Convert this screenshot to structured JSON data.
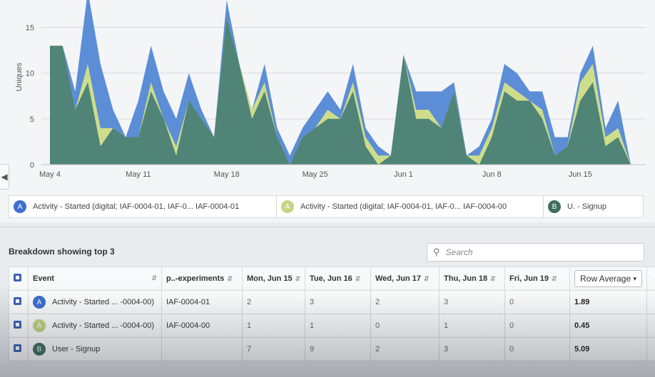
{
  "chart": {
    "colors": {
      "blue": "#5b8ed6",
      "yellow": "#cfdc8a",
      "green": "#4f8477",
      "grid": "#d7d9dd"
    },
    "chart_data": {
      "type": "area",
      "ylabel": "Uniques",
      "ylim": [
        0,
        18
      ],
      "yticks": [
        0,
        5,
        10,
        15
      ],
      "xticks": [
        {
          "label": "May 4",
          "day": 0
        },
        {
          "label": "May 11",
          "day": 7
        },
        {
          "label": "May 18",
          "day": 14
        },
        {
          "label": "May 25",
          "day": 21
        },
        {
          "label": "Jun 1",
          "day": 28
        },
        {
          "label": "Jun 8",
          "day": 35
        },
        {
          "label": "Jun 15",
          "day": 42
        }
      ],
      "x_start": "May 4",
      "series": [
        {
          "name": "U. - Signup",
          "color": "#4f8477",
          "values": [
            13,
            13,
            6,
            9,
            2,
            4,
            3,
            3,
            8,
            5,
            1,
            7,
            5,
            3,
            16,
            11,
            5,
            8,
            3,
            0,
            3,
            4,
            5,
            5,
            8,
            2,
            0,
            1,
            12,
            5,
            5,
            4,
            8,
            1,
            0,
            3,
            8,
            7,
            7,
            5,
            1,
            2,
            7,
            9,
            2,
            3,
            0
          ]
        },
        {
          "name": "Activity - Started (digital; IAF-0004-01, IAF-0... IAF-0004-00",
          "color": "#cfdc8a",
          "values": [
            13,
            13,
            6,
            11,
            4,
            4,
            3,
            3,
            9,
            5,
            2,
            7,
            5,
            3,
            16,
            11,
            6,
            9,
            3,
            0,
            3,
            4,
            6,
            5,
            9,
            3,
            1,
            1,
            12,
            6,
            6,
            4,
            8,
            1,
            1,
            4,
            9,
            8,
            7,
            6,
            1,
            2,
            9,
            11,
            3,
            4,
            0
          ]
        },
        {
          "name": "Activity - Started (digital; IAF-0004-01, IAF-0... IAF-0004-01",
          "color": "#5b8ed6",
          "values": [
            13,
            13,
            8,
            19,
            11,
            6,
            3,
            7,
            13,
            8,
            5,
            10,
            6,
            3,
            18,
            11,
            6,
            11,
            4,
            1,
            4,
            6,
            8,
            6,
            11,
            4,
            2,
            1,
            12,
            8,
            8,
            8,
            9,
            1,
            2,
            5,
            11,
            10,
            8,
            8,
            3,
            3,
            10,
            13,
            4,
            7,
            0
          ]
        }
      ]
    },
    "legend": [
      {
        "badge": "A",
        "badge_color": "#3d6fd0",
        "label": "Activity - Started (digital; IAF-0004-01, IAF-0... IAF-0004-01"
      },
      {
        "badge": "A",
        "badge_color": "#c5d483",
        "label": "Activity - Started (digital; IAF-0004-01, IAF-0... IAF-0004-00"
      },
      {
        "badge": "B",
        "badge_color": "#3f6f60",
        "label": "U. - Signup"
      }
    ]
  },
  "breakdown": {
    "title": "Breakdown showing top 3",
    "search_placeholder": "Search",
    "columns": [
      "Event",
      "p..-experiments",
      "Mon, Jun 15",
      "Tue, Jun 16",
      "Wed, Jun 17",
      "Thu, Jun 18",
      "Fri, Jun 19",
      "Row Average"
    ],
    "rows": [
      {
        "badge": "A",
        "badge_color": "#3d6fd0",
        "event": "Activity - Started ... -0004-00)",
        "exp": "IAF-0004-01",
        "vals": [
          "2",
          "3",
          "2",
          "3",
          "0"
        ],
        "avg": "1.89"
      },
      {
        "badge": "A",
        "badge_color": "#c5d483",
        "event": "Activity - Started ... -0004-00)",
        "exp": "IAF-0004-00",
        "vals": [
          "1",
          "1",
          "0",
          "1",
          "0"
        ],
        "avg": "0.45"
      },
      {
        "badge": "B",
        "badge_color": "#3f6f60",
        "event": "User - Signup",
        "exp": "",
        "vals": [
          "7",
          "9",
          "2",
          "3",
          "0"
        ],
        "avg": "5.09"
      }
    ]
  }
}
